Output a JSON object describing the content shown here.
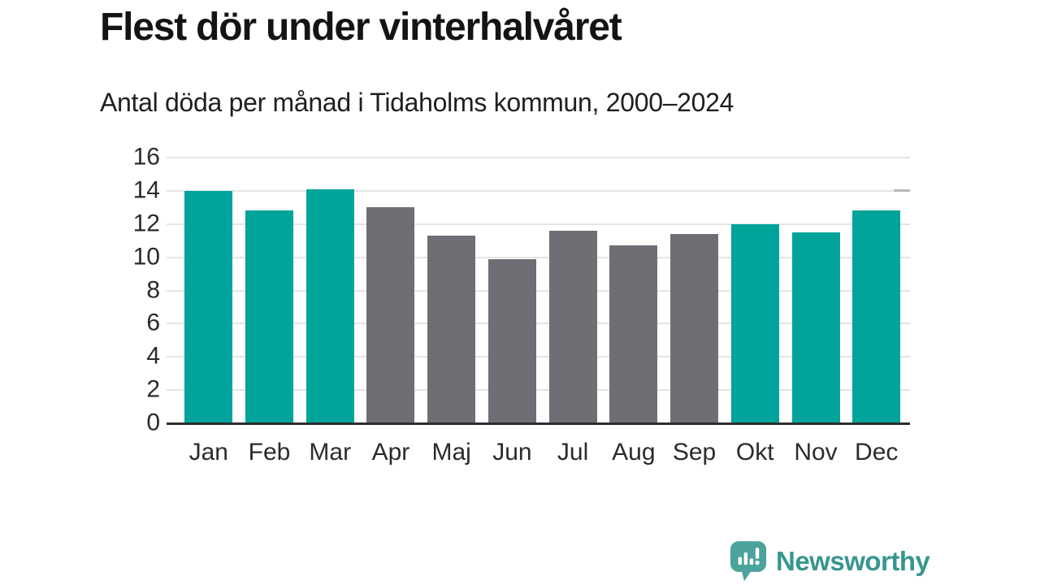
{
  "header": {
    "title": "Flest dör under vinterhalvåret",
    "subtitle": "Antal döda per månad i Tidaholms kommun, 2000–2024"
  },
  "chart_data": {
    "type": "bar",
    "title": "Flest dör under vinterhalvåret",
    "subtitle": "Antal döda per månad i Tidaholms kommun, 2000–2024",
    "categories": [
      "Jan",
      "Feb",
      "Mar",
      "Apr",
      "Maj",
      "Jun",
      "Jul",
      "Aug",
      "Sep",
      "Okt",
      "Nov",
      "Dec"
    ],
    "values": [
      14.0,
      12.8,
      14.1,
      13.0,
      11.3,
      9.9,
      11.6,
      10.7,
      11.4,
      12.0,
      11.5,
      12.8
    ],
    "bar_colors": [
      "teal",
      "teal",
      "teal",
      "gray",
      "gray",
      "gray",
      "gray",
      "gray",
      "gray",
      "teal",
      "teal",
      "teal"
    ],
    "palette": {
      "teal": "#00A49A",
      "gray": "#6F6E74"
    },
    "xlabel": "",
    "ylabel": "",
    "ylim": [
      0,
      16
    ],
    "yticks": [
      0,
      2,
      4,
      6,
      8,
      10,
      12,
      14,
      16
    ],
    "grid": "horizontal",
    "grid_color": "#e4e4e4",
    "axis_line_color": "#2d2d2d",
    "legend": "none"
  },
  "footer": {
    "brand": "Newsworthy",
    "brand_color": "#37968F",
    "icon": "speech-bubble-bar-chart",
    "icon_color": "#4BA39B"
  }
}
